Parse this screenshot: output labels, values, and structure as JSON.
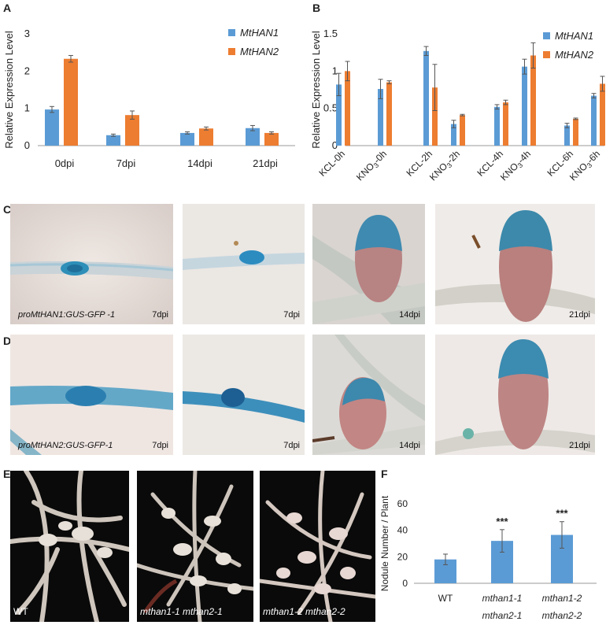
{
  "panel_labels": {
    "A": "A",
    "B": "B",
    "C": "C",
    "D": "D",
    "E": "E",
    "F": "F"
  },
  "colors": {
    "han1": "#5b9bd5",
    "han2": "#ed7d31",
    "error": "#555555"
  },
  "chart_data": [
    {
      "id": "A",
      "type": "bar",
      "ylabel": "Relative Expression Level",
      "ylim": [
        0,
        3
      ],
      "yticks": [
        "0",
        "1",
        "2",
        "3"
      ],
      "categories": [
        "0dpi",
        "7dpi",
        "14dpi",
        "21dpi"
      ],
      "legend": [
        "MtHAN1",
        "MtHAN2"
      ],
      "legend_position": "top-right",
      "series": [
        {
          "name": "MtHAN1",
          "values": [
            0.97,
            0.28,
            0.34,
            0.47
          ],
          "errors": [
            0.08,
            0.03,
            0.03,
            0.07
          ]
        },
        {
          "name": "MtHAN2",
          "values": [
            2.33,
            0.82,
            0.46,
            0.34
          ],
          "errors": [
            0.09,
            0.11,
            0.04,
            0.03
          ]
        }
      ]
    },
    {
      "id": "B",
      "type": "bar",
      "ylabel": "Relative Expression Level",
      "ylim": [
        0,
        1.5
      ],
      "yticks": [
        "0",
        "0.5",
        "1",
        "1.5"
      ],
      "categories": [
        "KCL-0h",
        "KNO3-0h",
        "KCL-2h",
        "KNO3-2h",
        "KCL-4h",
        "KNO3-4h",
        "KCL-6h",
        "KNO3-6h"
      ],
      "legend": [
        "MtHAN1",
        "MtHAN2"
      ],
      "legend_position": "top-right",
      "series": [
        {
          "name": "MtHAN1",
          "values": [
            0.82,
            0.76,
            1.27,
            0.29,
            0.52,
            1.06,
            0.27,
            0.67
          ],
          "errors": [
            0.15,
            0.13,
            0.06,
            0.05,
            0.03,
            0.1,
            0.03,
            0.03
          ]
        },
        {
          "name": "MtHAN2",
          "values": [
            1.0,
            0.85,
            0.78,
            0.41,
            0.58,
            1.21,
            0.36,
            0.83
          ],
          "errors": [
            0.13,
            0.02,
            0.31,
            0.01,
            0.03,
            0.17,
            0.01,
            0.1
          ]
        }
      ]
    },
    {
      "id": "F",
      "type": "bar",
      "ylabel": "Nodule Number / Plant",
      "ylim": [
        0,
        60
      ],
      "yticks": [
        "0",
        "20",
        "40",
        "60"
      ],
      "categories": [
        [
          "WT",
          ""
        ],
        [
          "mthan1-1",
          "mthan2-1"
        ],
        [
          "mthan1-2",
          "mthan2-2"
        ]
      ],
      "values": [
        18,
        32,
        36.5
      ],
      "errors": [
        4,
        8.5,
        10
      ],
      "significance": [
        "",
        "***",
        "***"
      ]
    }
  ],
  "panel_C": {
    "captions": [
      "proMtHAN1:GUS-GFP -1",
      "",
      "",
      ""
    ],
    "times": [
      "7dpi",
      "7dpi",
      "14dpi",
      "21dpi"
    ]
  },
  "panel_D": {
    "captions": [
      "proMtHAN2:GUS-GFP-1",
      "",
      "",
      ""
    ],
    "times": [
      "7dpi",
      "7dpi",
      "14dpi",
      "21dpi"
    ]
  },
  "panel_E": {
    "captions": [
      "WT",
      "mthan1-1 mthan2-1",
      "mthan1-2 mthan2-2"
    ]
  }
}
